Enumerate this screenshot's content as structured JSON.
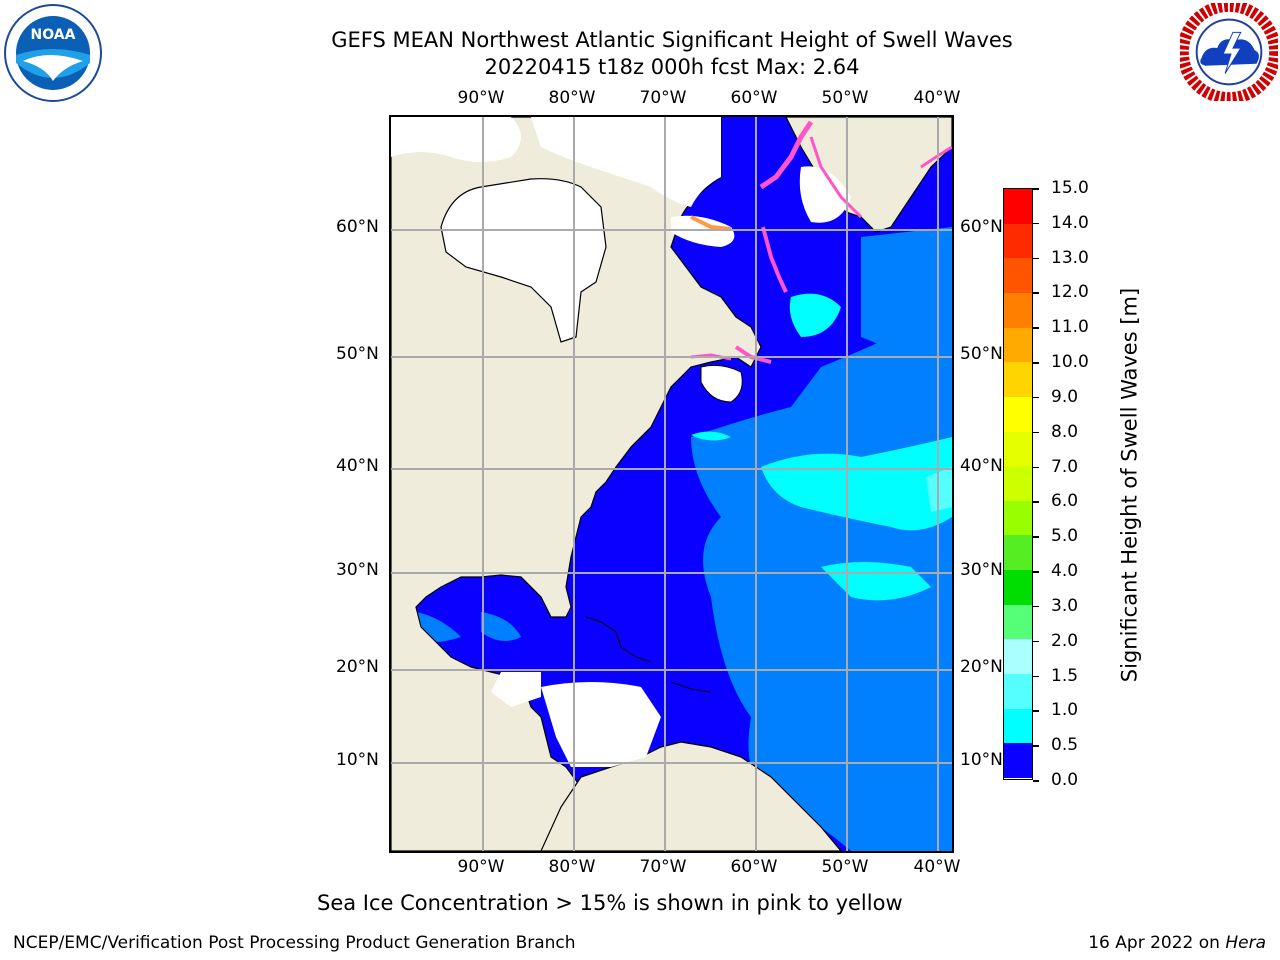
{
  "title": {
    "line1": "GEFS MEAN Northwest Atlantic Significant Height of Swell Waves",
    "line2": "20220415 t18z 000h fcst   Max: 2.64"
  },
  "logos": {
    "noara_icon": "noaa-logo",
    "nws_icon": "nws-logo"
  },
  "map": {
    "lon_labels": [
      "90°W",
      "80°W",
      "70°W",
      "60°W",
      "50°W",
      "40°W"
    ],
    "lat_labels": [
      "60°N",
      "50°N",
      "40°N",
      "30°N",
      "20°N",
      "10°N"
    ],
    "colors": {
      "land": "#efecdc",
      "ice": "#ffffff",
      "grid": "#aaaaaa",
      "deep_blue": "#0a00ff",
      "mid_blue": "#0080ff",
      "cyan": "#00ffff",
      "light_cyan": "#55ffff"
    }
  },
  "colorbar": {
    "ticks": [
      "15.0",
      "14.0",
      "13.0",
      "12.0",
      "11.0",
      "10.0",
      "9.0",
      "8.0",
      "7.0",
      "6.0",
      "5.0",
      "4.0",
      "3.0",
      "2.0",
      "1.5",
      "1.0",
      "0.5",
      "0.0"
    ],
    "colors": [
      "#ff0000",
      "#ff2a00",
      "#ff5500",
      "#ff8000",
      "#ffaa00",
      "#ffd500",
      "#ffff00",
      "#e6ff00",
      "#ccff00",
      "#99ff00",
      "#55ee22",
      "#00dd00",
      "#55ff77",
      "#aaffff",
      "#55ffff",
      "#00ffff",
      "#0080ff",
      "#0a00ff"
    ],
    "label": "Significant Height of Swell Waves [m]"
  },
  "caption": "Sea Ice Concentration > 15% is shown in pink to yellow",
  "footer": {
    "left": "NCEP/EMC/Verification Post Processing Product Generation Branch",
    "right_prefix": "16 Apr 2022 on ",
    "right_machine": "Hera"
  }
}
